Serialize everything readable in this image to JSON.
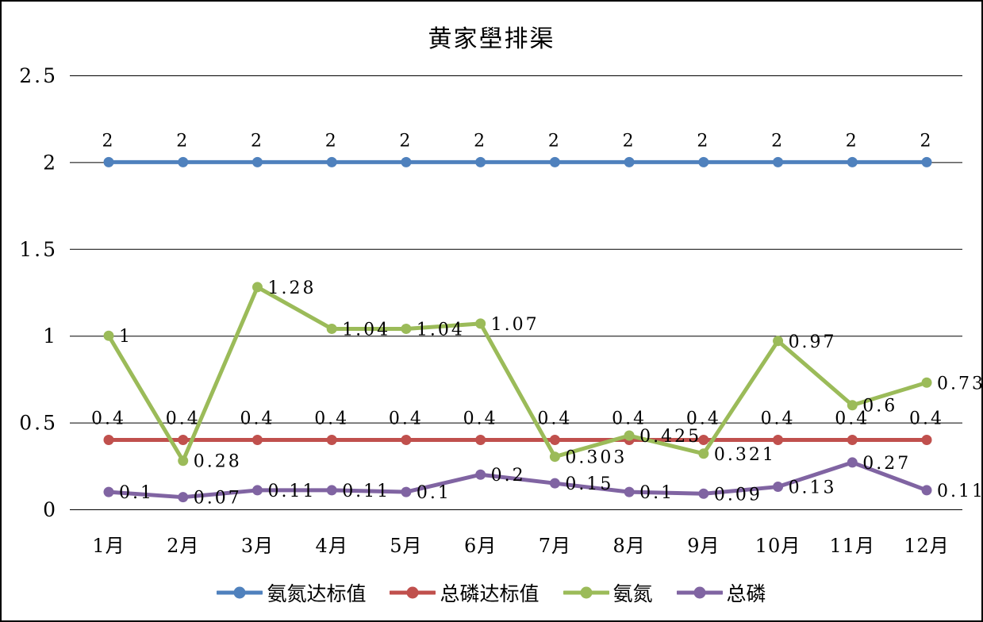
{
  "frame": {
    "background_color": "#ffffff",
    "border_color": "#000000"
  },
  "chart_data": {
    "type": "line",
    "title": "黄家壆排渠",
    "xlabel": "",
    "ylabel": "",
    "categories": [
      "1月",
      "2月",
      "3月",
      "4月",
      "5月",
      "6月",
      "7月",
      "8月",
      "9月",
      "10月",
      "11月",
      "12月"
    ],
    "ylim": [
      0,
      2.5
    ],
    "yticks": [
      "0",
      "0.5",
      "1",
      "1.5",
      "2",
      "2.5"
    ],
    "grid": "horizontal",
    "gridline_color": "#000000",
    "legend_position": "bottom",
    "series": [
      {
        "name": "氨氮达标值",
        "color": "#4F81BD",
        "label_position": "above",
        "values": [
          2,
          2,
          2,
          2,
          2,
          2,
          2,
          2,
          2,
          2,
          2,
          2
        ],
        "labels": [
          "2",
          "2",
          "2",
          "2",
          "2",
          "2",
          "2",
          "2",
          "2",
          "2",
          "2",
          "2"
        ]
      },
      {
        "name": "总磷达标值",
        "color": "#C0504D",
        "label_position": "above",
        "values": [
          0.4,
          0.4,
          0.4,
          0.4,
          0.4,
          0.4,
          0.4,
          0.4,
          0.4,
          0.4,
          0.4,
          0.4
        ],
        "labels": [
          "0.4",
          "0.4",
          "0.4",
          "0.4",
          "0.4",
          "0.4",
          "0.4",
          "0.4",
          "0.4",
          "0.4",
          "0.4",
          "0.4"
        ]
      },
      {
        "name": "氨氮",
        "color": "#9BBB59",
        "label_position": "right",
        "values": [
          1,
          0.28,
          1.28,
          1.04,
          1.04,
          1.07,
          0.303,
          0.425,
          0.321,
          0.97,
          0.6,
          0.73
        ],
        "labels": [
          "1",
          "0.28",
          "1.28",
          "1.04",
          "1.04",
          "1.07",
          "0.303",
          "0.425",
          "0.321",
          "0.97",
          "0.6",
          "0.73"
        ]
      },
      {
        "name": "总磷",
        "color": "#8064A2",
        "label_position": "right",
        "values": [
          0.1,
          0.07,
          0.11,
          0.11,
          0.1,
          0.2,
          0.15,
          0.1,
          0.09,
          0.13,
          0.27,
          0.11
        ],
        "labels": [
          "0.1",
          "0.07",
          "0.11",
          "0.11",
          "0.1",
          "0.2",
          "0.15",
          "0.1",
          "0.09",
          "0.13",
          "0.27",
          "0.11"
        ]
      }
    ]
  }
}
